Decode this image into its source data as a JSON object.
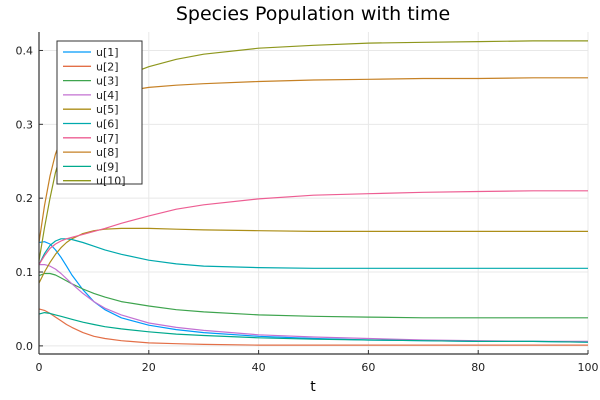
{
  "chart_data": {
    "type": "line",
    "title": "Species Population with time",
    "xlabel": "t",
    "ylabel": "",
    "xlim": [
      0,
      100
    ],
    "ylim": [
      -0.011,
      0.425
    ],
    "xticks": [
      0,
      20,
      40,
      60,
      80,
      100
    ],
    "yticks": [
      0.0,
      0.1,
      0.2,
      0.3,
      0.4
    ],
    "ytick_labels": [
      "0.0",
      "0.1",
      "0.2",
      "0.3",
      "0.4"
    ],
    "grid": true,
    "legend_position": "top-left",
    "x": [
      0,
      1,
      2,
      3,
      4,
      5,
      6,
      8,
      10,
      12,
      15,
      20,
      25,
      30,
      40,
      50,
      60,
      70,
      80,
      90,
      100
    ],
    "series": [
      {
        "name": "u[1]",
        "color": "#009AFA",
        "values": [
          0.14,
          0.141,
          0.138,
          0.13,
          0.12,
          0.108,
          0.096,
          0.076,
          0.06,
          0.049,
          0.038,
          0.028,
          0.022,
          0.018,
          0.013,
          0.01,
          0.008,
          0.007,
          0.006,
          0.006,
          0.005
        ]
      },
      {
        "name": "u[2]",
        "color": "#E36F47",
        "values": [
          0.05,
          0.048,
          0.044,
          0.039,
          0.034,
          0.029,
          0.025,
          0.018,
          0.013,
          0.01,
          0.007,
          0.004,
          0.003,
          0.002,
          0.001,
          0.001,
          0.001,
          0.001,
          0.001,
          0.001,
          0.001
        ]
      },
      {
        "name": "u[3]",
        "color": "#3EA44E",
        "values": [
          0.095,
          0.098,
          0.098,
          0.096,
          0.092,
          0.088,
          0.084,
          0.077,
          0.071,
          0.066,
          0.06,
          0.054,
          0.049,
          0.046,
          0.042,
          0.04,
          0.039,
          0.038,
          0.038,
          0.038,
          0.038
        ]
      },
      {
        "name": "u[4]",
        "color": "#C371D2",
        "values": [
          0.11,
          0.11,
          0.108,
          0.104,
          0.098,
          0.091,
          0.084,
          0.071,
          0.06,
          0.051,
          0.042,
          0.031,
          0.025,
          0.021,
          0.015,
          0.012,
          0.01,
          0.008,
          0.007,
          0.006,
          0.006
        ]
      },
      {
        "name": "u[5]",
        "color": "#AC8E18",
        "values": [
          0.085,
          0.1,
          0.113,
          0.124,
          0.133,
          0.14,
          0.145,
          0.152,
          0.156,
          0.158,
          0.159,
          0.159,
          0.158,
          0.157,
          0.156,
          0.155,
          0.155,
          0.155,
          0.155,
          0.155,
          0.155
        ]
      },
      {
        "name": "u[6]",
        "color": "#00A9AD",
        "values": [
          0.11,
          0.125,
          0.136,
          0.142,
          0.145,
          0.145,
          0.144,
          0.14,
          0.135,
          0.13,
          0.124,
          0.116,
          0.111,
          0.108,
          0.106,
          0.105,
          0.105,
          0.105,
          0.105,
          0.105,
          0.105
        ]
      },
      {
        "name": "u[7]",
        "color": "#ED5E93",
        "values": [
          0.11,
          0.122,
          0.132,
          0.138,
          0.142,
          0.145,
          0.147,
          0.151,
          0.155,
          0.159,
          0.166,
          0.176,
          0.185,
          0.191,
          0.199,
          0.204,
          0.206,
          0.208,
          0.209,
          0.21,
          0.21
        ]
      },
      {
        "name": "u[8]",
        "color": "#C68125",
        "values": [
          0.14,
          0.19,
          0.23,
          0.26,
          0.28,
          0.295,
          0.307,
          0.322,
          0.332,
          0.338,
          0.344,
          0.35,
          0.353,
          0.355,
          0.358,
          0.36,
          0.361,
          0.362,
          0.362,
          0.363,
          0.363
        ]
      },
      {
        "name": "u[9]",
        "color": "#00A98D",
        "values": [
          0.043,
          0.045,
          0.044,
          0.042,
          0.04,
          0.038,
          0.036,
          0.032,
          0.029,
          0.026,
          0.023,
          0.019,
          0.016,
          0.014,
          0.011,
          0.009,
          0.008,
          0.007,
          0.006,
          0.006,
          0.005
        ]
      },
      {
        "name": "u[10]",
        "color": "#8E971D",
        "values": [
          0.115,
          0.16,
          0.2,
          0.235,
          0.26,
          0.28,
          0.297,
          0.322,
          0.34,
          0.352,
          0.364,
          0.378,
          0.388,
          0.395,
          0.403,
          0.407,
          0.41,
          0.411,
          0.412,
          0.413,
          0.413
        ]
      }
    ]
  }
}
